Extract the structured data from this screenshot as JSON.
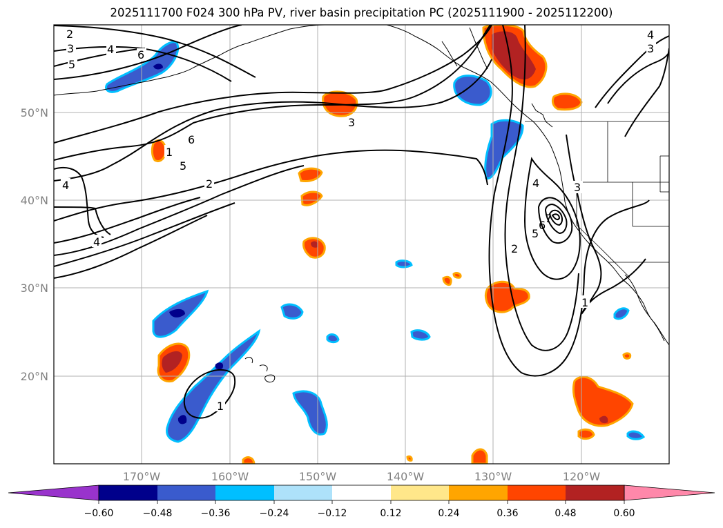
{
  "title": "2025111700 F024 300 hPa PV, river basin precipitation PC (2025111900 - 2025112200)",
  "map": {
    "projection": "plate-carree",
    "lon_range": [
      -180,
      -110
    ],
    "lat_range": [
      10,
      60
    ],
    "gridlines": true,
    "lat_ticks": [
      {
        "value": 50,
        "label": "50°N"
      },
      {
        "value": 40,
        "label": "40°N"
      },
      {
        "value": 30,
        "label": "30°N"
      },
      {
        "value": 20,
        "label": "20°N"
      }
    ],
    "lon_ticks": [
      {
        "value": -170,
        "label": "170°W"
      },
      {
        "value": -160,
        "label": "160°W"
      },
      {
        "value": -150,
        "label": "150°W"
      },
      {
        "value": -140,
        "label": "140°W"
      },
      {
        "value": -130,
        "label": "130°W"
      },
      {
        "value": -120,
        "label": "120°W"
      }
    ],
    "pv_contour_labels": [
      "2",
      "3",
      "4",
      "5",
      "6",
      "6",
      "5",
      "2",
      "4",
      "4",
      "3",
      "4",
      "3",
      "4",
      "3",
      "2",
      "7",
      "6",
      "5",
      "1",
      "1",
      "1"
    ]
  },
  "colorbar": {
    "orientation": "horizontal",
    "extend": "both",
    "tick_labels": [
      "−0.60",
      "−0.48",
      "−0.36",
      "−0.24",
      "−0.12",
      "0.12",
      "0.24",
      "0.36",
      "0.48",
      "0.60"
    ],
    "colors": [
      "#9933cc",
      "#00008b",
      "#3a5bcd",
      "#00bfff",
      "#aee2fa",
      "#ffffff",
      "#ffe78a",
      "#ffa500",
      "#ff4500",
      "#b22222",
      "#ff88aa"
    ]
  }
}
